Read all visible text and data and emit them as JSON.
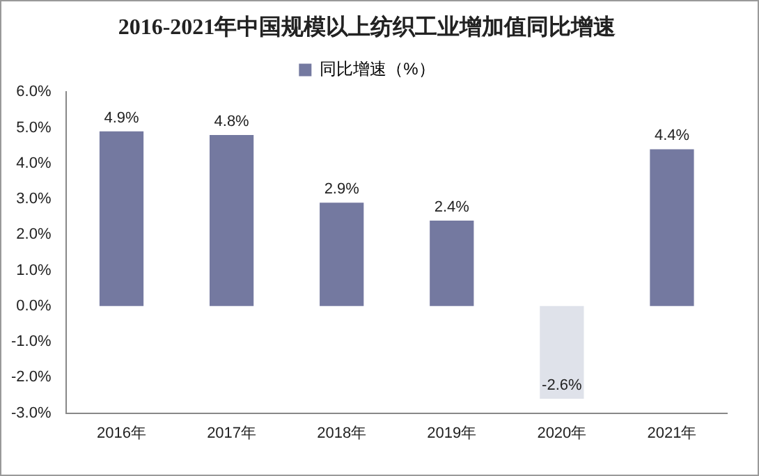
{
  "chart_data": {
    "type": "bar",
    "title": "2016-2021年中国规模以上纺织工业增加值同比增速",
    "categories": [
      "2016年",
      "2017年",
      "2018年",
      "2019年",
      "2020年",
      "2021年"
    ],
    "series": [
      {
        "name": "同比增速（%）",
        "color": "#7479a0",
        "colors": [
          "#7479a0",
          "#7479a0",
          "#7479a0",
          "#7479a0",
          "#dfe2ea",
          "#7479a0"
        ],
        "values": [
          4.9,
          4.8,
          2.9,
          2.4,
          -2.6,
          4.4
        ],
        "value_labels": [
          "4.9%",
          "4.8%",
          "2.9%",
          "2.4%",
          "-2.6%",
          "4.4%"
        ]
      }
    ],
    "ylim": [
      -3,
      6
    ],
    "yticks": [
      {
        "value": 6,
        "label": "6.0%"
      },
      {
        "value": 5,
        "label": "5.0%"
      },
      {
        "value": 4,
        "label": "4.0%"
      },
      {
        "value": 3,
        "label": "3.0%"
      },
      {
        "value": 2,
        "label": "2.0%"
      },
      {
        "value": 1,
        "label": "1.0%"
      },
      {
        "value": 0,
        "label": "0.0%"
      },
      {
        "value": -1,
        "label": "-1.0%"
      },
      {
        "value": -2,
        "label": "-2.0%"
      },
      {
        "value": -3,
        "label": "-3.0%"
      }
    ],
    "grid": false,
    "legend": "top"
  }
}
